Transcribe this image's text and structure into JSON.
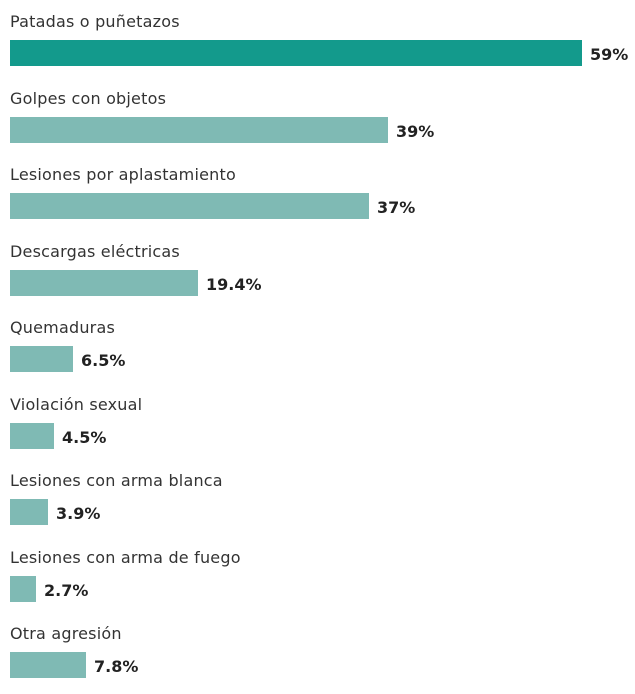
{
  "chart_data": {
    "type": "bar",
    "orientation": "horizontal",
    "categories": [
      "Patadas o puñetazos",
      "Golpes con objetos",
      "Lesiones por aplastamiento",
      "Descargas eléctricas",
      "Quemaduras",
      "Violación sexual",
      "Lesiones con arma blanca",
      "Lesiones con arma de fuego",
      "Otra agresión"
    ],
    "values": [
      59,
      39,
      37,
      19.4,
      6.5,
      4.5,
      3.9,
      2.7,
      7.8
    ],
    "value_labels": [
      "59%",
      "39%",
      "37%",
      "19.4%",
      "6.5%",
      "4.5%",
      "3.9%",
      "2.7%",
      "7.8%"
    ],
    "unit": "%",
    "xlim": [
      0,
      59
    ],
    "grid": false,
    "legend": false,
    "colors": {
      "highlight": "#139a8c",
      "default": "#7fbab4"
    },
    "highlight_index": 0
  }
}
